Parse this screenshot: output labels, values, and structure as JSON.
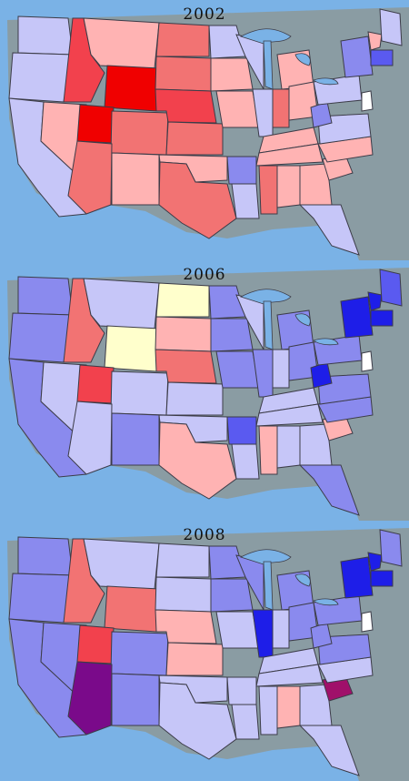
{
  "maps": [
    {
      "year": "2002"
    },
    {
      "year": "2006"
    },
    {
      "year": "2008"
    }
  ],
  "colors": {
    "ocean": "#7ab2e6",
    "land": "#8a9ca3",
    "lake": "#7ab2e6",
    "border": "#3c3c48",
    "deep_red": "#f00000",
    "red": "#f2414d",
    "mid_red": "#f27373",
    "light_red": "#ffb3b3",
    "pale_yellow": "#ffffcc",
    "pale_blue": "#c6c6f8",
    "light_blue": "#a8a8f2",
    "mid_blue": "#8a8aee",
    "blue": "#5a5af0",
    "deep_blue": "#1e1ee8",
    "purple": "#7a0a8a",
    "dark_red_purple": "#a0106a"
  }
}
